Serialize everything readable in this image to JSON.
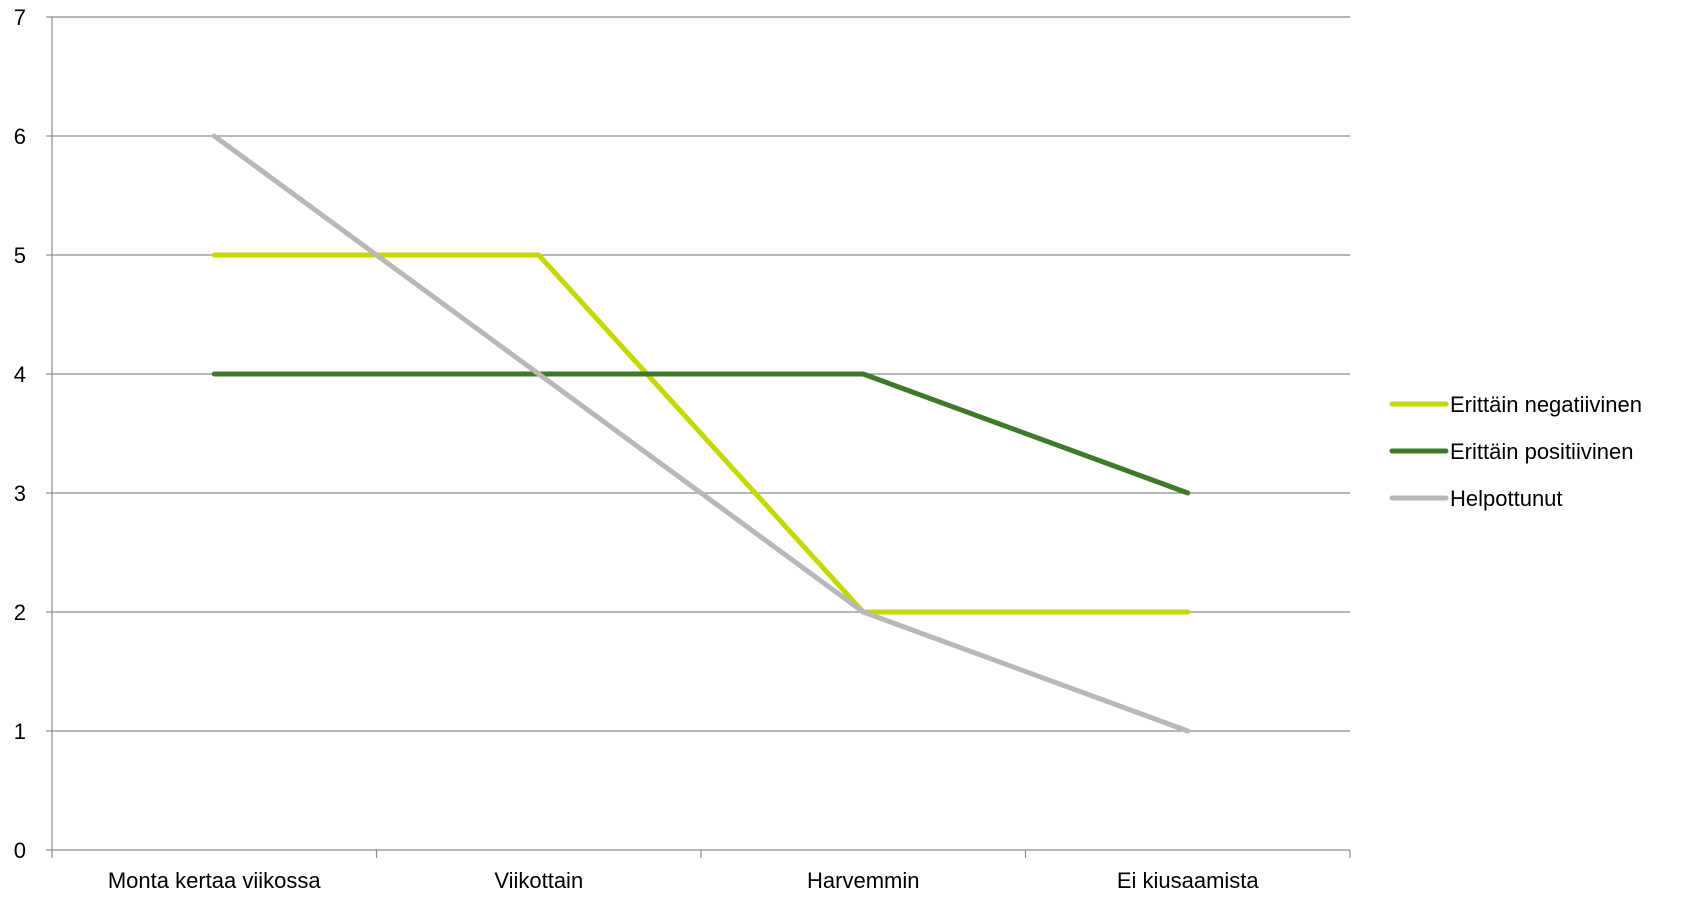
{
  "chart_data": {
    "type": "line",
    "title": "",
    "xlabel": "",
    "ylabel": "",
    "categories": [
      "Monta kertaa viikossa",
      "Viikottain",
      "Harvemmin",
      "Ei kiusaamista"
    ],
    "ylim": [
      0,
      7
    ],
    "yticks": [
      "0",
      "1",
      "2",
      "3",
      "4",
      "5",
      "6",
      "7"
    ],
    "grid": true,
    "legend_position": "right",
    "series": [
      {
        "name": "Erittäin negatiivinen",
        "color": "#c5d800",
        "values": [
          5,
          5,
          2,
          2
        ]
      },
      {
        "name": "Erittäin positiivinen",
        "color": "#3f7a2b",
        "values": [
          4,
          4,
          4,
          3
        ]
      },
      {
        "name": "Helpottunut",
        "color": "#b8b8b8",
        "values": [
          6,
          4,
          2,
          1
        ]
      }
    ]
  }
}
